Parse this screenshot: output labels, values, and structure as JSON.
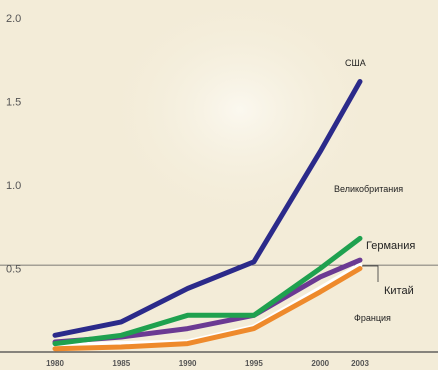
{
  "chart_data": {
    "type": "line",
    "x": [
      1980,
      1985,
      1990,
      1995,
      2000,
      2003
    ],
    "xticks": [
      "1980",
      "1985",
      "1990",
      "1995",
      "2000",
      "2003"
    ],
    "ylim": [
      0,
      2.0
    ],
    "yticks": [
      "2.0",
      "1.5",
      "1.0",
      "0.5"
    ],
    "yticks_values": [
      2.0,
      1.5,
      1.0,
      0.5
    ],
    "reference_line": 0.52,
    "series": [
      {
        "name": "США",
        "color": "#2b2a8a",
        "values": [
          0.1,
          0.18,
          0.38,
          0.54,
          1.2,
          1.62
        ]
      },
      {
        "name": "Великобритания",
        "color": "#1fa14f",
        "values": [
          0.05,
          0.1,
          0.22,
          0.22,
          0.5,
          0.68
        ]
      },
      {
        "name": "Германия",
        "color": "#6b3a93",
        "values": [
          0.06,
          0.09,
          0.14,
          0.22,
          0.45,
          0.55
        ]
      },
      {
        "name": "Китай",
        "color": "#ffffff",
        "values": [
          0.04,
          0.05,
          0.06,
          0.15,
          0.38,
          0.52
        ]
      },
      {
        "name": "Франция",
        "color": "#ee8a2c",
        "values": [
          0.02,
          0.03,
          0.05,
          0.14,
          0.36,
          0.5
        ]
      }
    ]
  }
}
